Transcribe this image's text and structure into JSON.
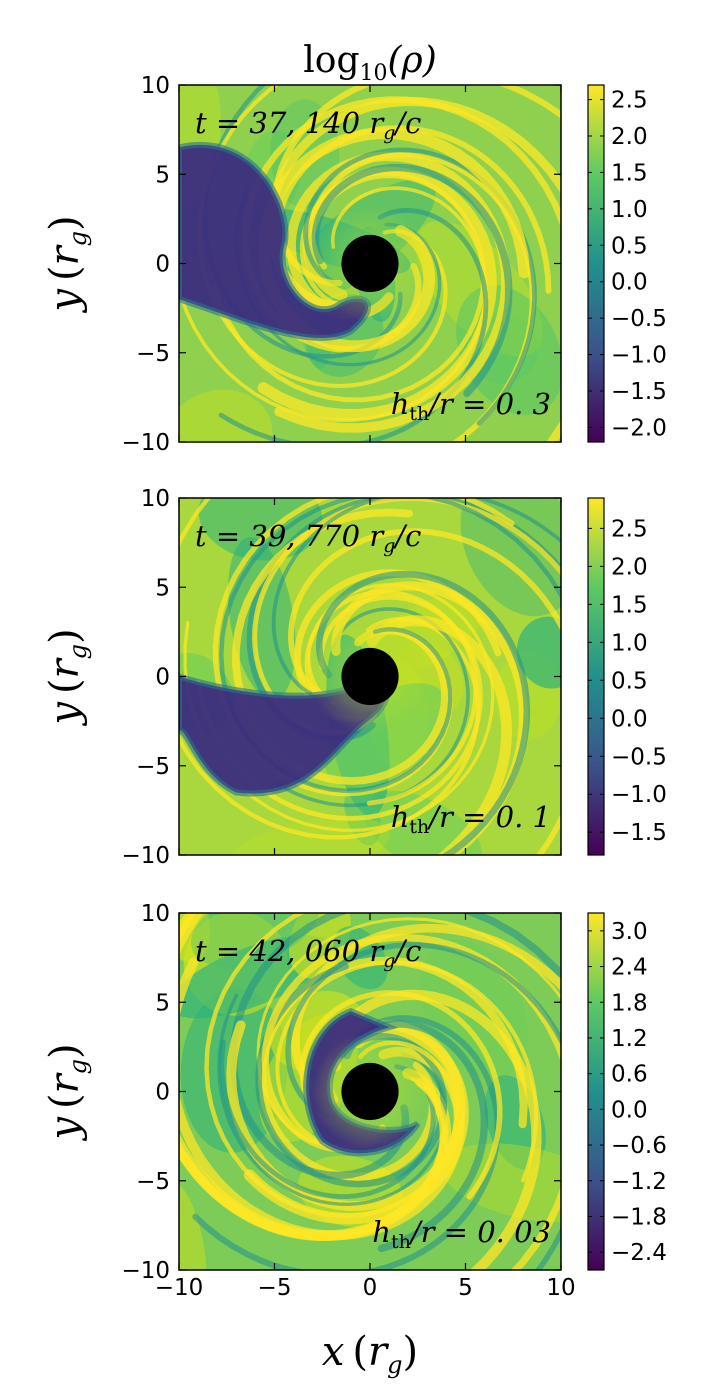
{
  "figure": {
    "title": "log₁₀(ρ)",
    "title_parts": {
      "main": "log",
      "sub": "10",
      "arg": "(ρ)"
    },
    "xlabel": {
      "var": "x",
      "open": "(",
      "r": "r",
      "sub": "g",
      "close": ")"
    },
    "ylabel": {
      "var": "y",
      "open": "(",
      "r": "r",
      "sub": "g",
      "close": ")"
    },
    "black_hole_color": "#000000",
    "colormap": [
      "#440154",
      "#3b528b",
      "#21918c",
      "#5ec962",
      "#fde725"
    ]
  },
  "chart_data": [
    {
      "type": "heatmap",
      "panel": 1,
      "title": "log₁₀(ρ)",
      "time_label": {
        "prefix": "t = 37, 140",
        "r": "r",
        "sub": "g",
        "suffix": "/c"
      },
      "thickness_label": {
        "h": "h",
        "sub": "th",
        "rest": "/r = 0. 3"
      },
      "xlim": [
        -10,
        10
      ],
      "ylim": [
        -10,
        10
      ],
      "xticks": [
        "−10",
        "−5",
        "0",
        "5",
        "10"
      ],
      "yticks": [
        "10",
        "5",
        "0",
        "−5",
        "−10"
      ],
      "colorbar": {
        "range": [
          -2.2,
          2.7
        ],
        "ticks": [
          2.5,
          2.0,
          1.5,
          1.0,
          0.5,
          0.0,
          -0.5,
          -1.0,
          -1.5,
          -2.0
        ],
        "tick_labels": [
          "2.5",
          "2.0",
          "1.5",
          "1.0",
          "0.5",
          "0.0",
          "−0.5",
          "−1.0",
          "−1.5",
          "−2.0"
        ]
      },
      "black_hole_radius": 1.5,
      "underdense_arm": "left"
    },
    {
      "type": "heatmap",
      "panel": 2,
      "time_label": {
        "prefix": "t = 39, 770",
        "r": "r",
        "sub": "g",
        "suffix": "/c"
      },
      "thickness_label": {
        "h": "h",
        "sub": "th",
        "rest": "/r = 0. 1"
      },
      "xlim": [
        -10,
        10
      ],
      "ylim": [
        -10,
        10
      ],
      "xticks": [
        "−10",
        "−5",
        "0",
        "5",
        "10"
      ],
      "yticks": [
        "10",
        "5",
        "0",
        "−5",
        "−10"
      ],
      "colorbar": {
        "range": [
          -1.8,
          2.9
        ],
        "ticks": [
          2.5,
          2.0,
          1.5,
          1.0,
          0.5,
          0.0,
          -0.5,
          -1.0,
          -1.5
        ],
        "tick_labels": [
          "2.5",
          "2.0",
          "1.5",
          "1.0",
          "0.5",
          "0.0",
          "−0.5",
          "−1.0",
          "−1.5"
        ]
      },
      "black_hole_radius": 1.5,
      "underdense_arm": "lower-left"
    },
    {
      "type": "heatmap",
      "panel": 3,
      "time_label": {
        "prefix": "t = 42, 060",
        "r": "r",
        "sub": "g",
        "suffix": "/c"
      },
      "thickness_label": {
        "h": "h",
        "sub": "th",
        "rest": "/r = 0. 03"
      },
      "xlim": [
        -10,
        10
      ],
      "ylim": [
        -10,
        10
      ],
      "xticks": [
        "−10",
        "−5",
        "0",
        "5",
        "10"
      ],
      "yticks": [
        "10",
        "5",
        "0",
        "−5",
        "−10"
      ],
      "colorbar": {
        "range": [
          -2.7,
          3.3
        ],
        "ticks": [
          3.0,
          2.4,
          1.8,
          1.2,
          0.6,
          0.0,
          -0.6,
          -1.2,
          -1.8,
          -2.4
        ],
        "tick_labels": [
          "3.0",
          "2.4",
          "1.8",
          "1.2",
          "0.6",
          "0.0",
          "−0.6",
          "−1.2",
          "−1.8",
          "−2.4"
        ]
      },
      "black_hole_radius": 1.5,
      "underdense_arm": "inner ring"
    }
  ]
}
